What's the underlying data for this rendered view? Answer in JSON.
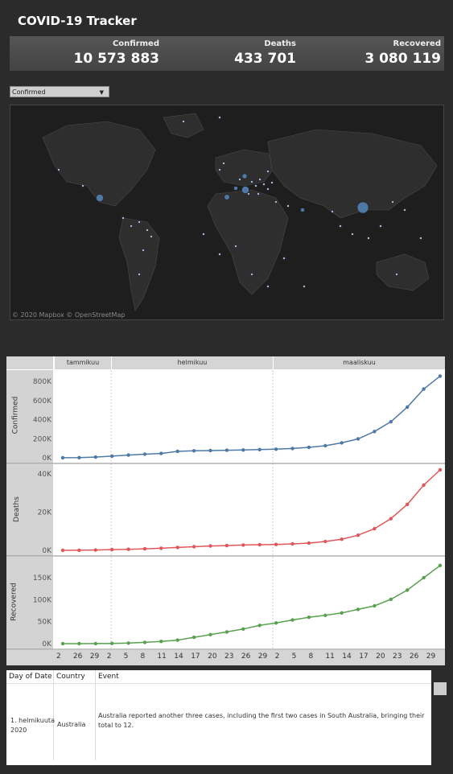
{
  "app": {
    "title": "COVID-19 Tracker"
  },
  "kpis": [
    {
      "label": "Confirmed",
      "value": "10 573 883"
    },
    {
      "label": "Deaths",
      "value": "433 701"
    },
    {
      "label": "Recovered",
      "value": "3 080 119"
    }
  ],
  "filter": {
    "selected": "Confirmed"
  },
  "map": {
    "attribution": "© 2020 Mapbox © OpenStreetMap"
  },
  "timeline": {
    "months": [
      "tammikuu",
      "helmikuu",
      "maaliskuu"
    ],
    "x_labels": [
      "2",
      "26",
      "29",
      "2",
      "5",
      "8",
      "11",
      "14",
      "17",
      "20",
      "23",
      "26",
      "29",
      "2",
      "5",
      "8",
      "11",
      "14",
      "17",
      "20",
      "23",
      "26",
      "29"
    ]
  },
  "chart_data": [
    {
      "type": "line",
      "ylabel": "Confirmed",
      "color": "#4e79a7",
      "yticks": [
        "800K",
        "600K",
        "400K",
        "200K",
        "0K"
      ],
      "ylim": [
        0,
        860000
      ],
      "x": [
        "Jan 22",
        "Jan 26",
        "Jan 29",
        "Feb 2",
        "Feb 5",
        "Feb 8",
        "Feb 11",
        "Feb 14",
        "Feb 17",
        "Feb 20",
        "Feb 23",
        "Feb 26",
        "Feb 29",
        "Mar 2",
        "Mar 5",
        "Mar 8",
        "Mar 11",
        "Mar 14",
        "Mar 17",
        "Mar 20",
        "Mar 23",
        "Mar 26",
        "Mar 29",
        "Mar 31"
      ],
      "values": [
        600,
        2100,
        7800,
        17400,
        28300,
        37600,
        45200,
        67100,
        73300,
        76200,
        78900,
        81400,
        86000,
        90300,
        97900,
        109800,
        126200,
        156600,
        198000,
        276000,
        378000,
        531000,
        720000,
        857000
      ]
    },
    {
      "type": "line",
      "ylabel": "Deaths",
      "color": "#e15759",
      "yticks": [
        "40K",
        "20K",
        "0K"
      ],
      "ylim": [
        0,
        42000
      ],
      "x": [
        "Jan 22",
        "Jan 26",
        "Jan 29",
        "Feb 2",
        "Feb 5",
        "Feb 8",
        "Feb 11",
        "Feb 14",
        "Feb 17",
        "Feb 20",
        "Feb 23",
        "Feb 26",
        "Feb 29",
        "Mar 2",
        "Mar 5",
        "Mar 8",
        "Mar 11",
        "Mar 14",
        "Mar 17",
        "Mar 20",
        "Mar 23",
        "Mar 26",
        "Mar 29",
        "Mar 31"
      ],
      "values": [
        17,
        56,
        170,
        362,
        565,
        813,
        1100,
        1520,
        1870,
        2250,
        2470,
        2770,
        2940,
        3080,
        3350,
        3800,
        4600,
        5800,
        7900,
        11300,
        16500,
        24000,
        34000,
        42000
      ]
    },
    {
      "type": "line",
      "ylabel": "Recovered",
      "color": "#59a14f",
      "yticks": [
        "150K",
        "100K",
        "50K",
        "0K"
      ],
      "ylim": [
        0,
        185000
      ],
      "x": [
        "Jan 22",
        "Jan 26",
        "Jan 29",
        "Feb 2",
        "Feb 5",
        "Feb 8",
        "Feb 11",
        "Feb 14",
        "Feb 17",
        "Feb 20",
        "Feb 23",
        "Feb 26",
        "Feb 29",
        "Mar 2",
        "Mar 5",
        "Mar 8",
        "Mar 11",
        "Mar 14",
        "Mar 17",
        "Mar 20",
        "Mar 23",
        "Mar 26",
        "Mar 29",
        "Mar 31"
      ],
      "values": [
        30,
        40,
        120,
        500,
        1200,
        3000,
        5100,
        8100,
        14400,
        20600,
        26800,
        33300,
        41500,
        47000,
        53800,
        60000,
        64400,
        70000,
        78000,
        86000,
        101000,
        122000,
        150000,
        178000
      ]
    }
  ],
  "table": {
    "headers": [
      "Day of Date",
      "Country",
      "Event"
    ],
    "rows": [
      {
        "date": "1. helmikuuta 2020",
        "country": "Australia",
        "event": "Australia reported another three cases, including the first two cases in South Australia, bringing their total to 12."
      }
    ]
  }
}
